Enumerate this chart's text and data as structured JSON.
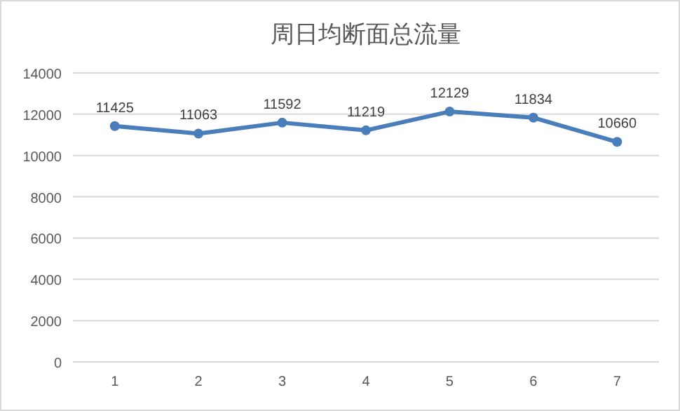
{
  "chart_data": {
    "type": "line",
    "title": "周日均断面总流量",
    "categories": [
      "1",
      "2",
      "3",
      "4",
      "5",
      "6",
      "7"
    ],
    "series": [
      {
        "color": "#4a7ebb",
        "values": [
          11425,
          11063,
          11592,
          11219,
          12129,
          11834,
          10660
        ]
      }
    ],
    "ylim": [
      0,
      14000
    ],
    "yticks": [
      0,
      2000,
      4000,
      6000,
      8000,
      10000,
      12000,
      14000
    ],
    "grid": "y",
    "marker": "circle",
    "line_style": "solid",
    "data_labels": true
  }
}
